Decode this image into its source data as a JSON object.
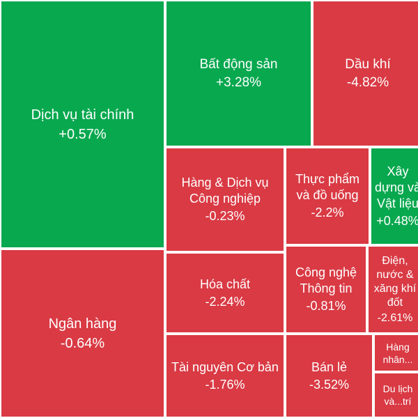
{
  "colors": {
    "up": "#08a84f",
    "down": "#d93a44",
    "border": "#ffffff"
  },
  "chart_data": {
    "type": "treemap",
    "unit": "%",
    "tiles": [
      {
        "name": "Dịch vụ tài chính",
        "change": "+0.57%",
        "value": 0.57
      },
      {
        "name": "Bất động sản",
        "change": "+3.28%",
        "value": 3.28
      },
      {
        "name": "Dầu khí",
        "change": "-4.82%",
        "value": -4.82
      },
      {
        "name": "Ngân hàng",
        "change": "-0.64%",
        "value": -0.64
      },
      {
        "name": "Hàng & Dịch vụ Công nghiệp",
        "change": "-0.23%",
        "value": -0.23
      },
      {
        "name": "Thực phẩm và đồ uống",
        "change": "-2.2%",
        "value": -2.2
      },
      {
        "name": "Xây dựng và Vật liệu",
        "change": "+0.48%",
        "value": 0.48
      },
      {
        "name": "Hóa chất",
        "change": "-2.24%",
        "value": -2.24
      },
      {
        "name": "Công nghệ Thông tin",
        "change": "-0.81%",
        "value": -0.81
      },
      {
        "name": "Điện, nước & xăng khí đốt",
        "change": "-2.61%",
        "value": -2.61
      },
      {
        "name": "Tài nguyên Cơ bản",
        "change": "-1.76%",
        "value": -1.76
      },
      {
        "name": "Bán lẻ",
        "change": "-3.52%",
        "value": -3.52
      },
      {
        "name": "Hàng nhân...",
        "change": "",
        "value": null
      },
      {
        "name": "Du lịch và...trí",
        "change": "",
        "value": null
      }
    ]
  }
}
